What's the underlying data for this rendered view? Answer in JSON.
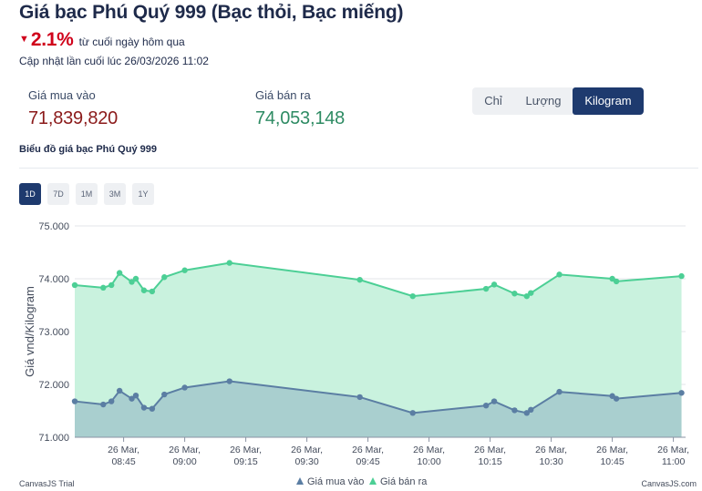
{
  "header": {
    "title": "Giá bạc Phú Quý 999 (Bạc thỏi, Bạc miếng)",
    "change_value": "2.1%",
    "change_text": "từ cuối ngày hôm qua",
    "updated": "Cập nhật lần cuối lúc 26/03/2026 11:02"
  },
  "prices": {
    "buy_label": "Giá mua vào",
    "buy_value": "71,839,820",
    "sell_label": "Giá bán ra",
    "sell_value": "74,053,148"
  },
  "units": {
    "options": [
      "Chỉ",
      "Lượng",
      "Kilogram"
    ],
    "selected": "Kilogram"
  },
  "chart_caption": "Biểu đồ giá bạc Phú Quý 999",
  "ranges": {
    "options": [
      "1D",
      "7D",
      "1M",
      "3M",
      "1Y"
    ],
    "selected": "1D"
  },
  "colors": {
    "buy_line": "#5b7ea3",
    "buy_fill": "#a9cfcf",
    "sell_line": "#4ccf95",
    "sell_fill": "#c9f2de",
    "accent": "#1e3a6e",
    "down": "#d0021b"
  },
  "chart_data": {
    "type": "area",
    "ylabel": "Giá vnd/Kilogram",
    "xlabel": "",
    "ylim": [
      71000,
      75000
    ],
    "yticks": [
      71000,
      72000,
      73000,
      74000,
      75000
    ],
    "ytick_labels": [
      "71.000",
      "72.000",
      "73.000",
      "74.000",
      "75.000"
    ],
    "xlim": [
      "08:33",
      "11:03"
    ],
    "xticks": [
      {
        "time": "08:45",
        "label": [
          "26 Mar,",
          "08:45"
        ]
      },
      {
        "time": "09:00",
        "label": [
          "26 Mar,",
          "09:00"
        ]
      },
      {
        "time": "09:15",
        "label": [
          "26 Mar,",
          "09:15"
        ]
      },
      {
        "time": "09:30",
        "label": [
          "26 Mar,",
          "09:30"
        ]
      },
      {
        "time": "09:45",
        "label": [
          "26 Mar,",
          "09:45"
        ]
      },
      {
        "time": "10:00",
        "label": [
          "26 Mar,",
          "10:00"
        ]
      },
      {
        "time": "10:15",
        "label": [
          "26 Mar,",
          "10:15"
        ]
      },
      {
        "time": "10:30",
        "label": [
          "26 Mar,",
          "10:30"
        ]
      },
      {
        "time": "10:45",
        "label": [
          "26 Mar,",
          "10:45"
        ]
      },
      {
        "time": "11:00",
        "label": [
          "26 Mar,",
          "11:00"
        ]
      }
    ],
    "x": [
      "08:33",
      "08:40",
      "08:42",
      "08:44",
      "08:47",
      "08:48",
      "08:50",
      "08:52",
      "08:55",
      "09:00",
      "09:11",
      "09:43",
      "09:56",
      "10:14",
      "10:16",
      "10:21",
      "10:24",
      "10:25",
      "10:32",
      "10:45",
      "10:46",
      "11:02"
    ],
    "grid": true,
    "legend_position": "bottom-center",
    "series": [
      {
        "name": "Giá mua vào",
        "values": [
          71680,
          71620,
          71680,
          71880,
          71730,
          71790,
          71560,
          71540,
          71810,
          71940,
          72060,
          71760,
          71460,
          71600,
          71680,
          71510,
          71460,
          71520,
          71860,
          71780,
          71730,
          71840
        ]
      },
      {
        "name": "Giá bán ra",
        "values": [
          73880,
          73830,
          73880,
          74110,
          73940,
          74000,
          73780,
          73760,
          74030,
          74160,
          74300,
          73980,
          73670,
          73810,
          73890,
          73720,
          73670,
          73730,
          74080,
          74000,
          73950,
          74050
        ]
      }
    ]
  },
  "footer": {
    "left_credit": "CanvasJS Trial",
    "right_credit": "CanvasJS.com"
  }
}
